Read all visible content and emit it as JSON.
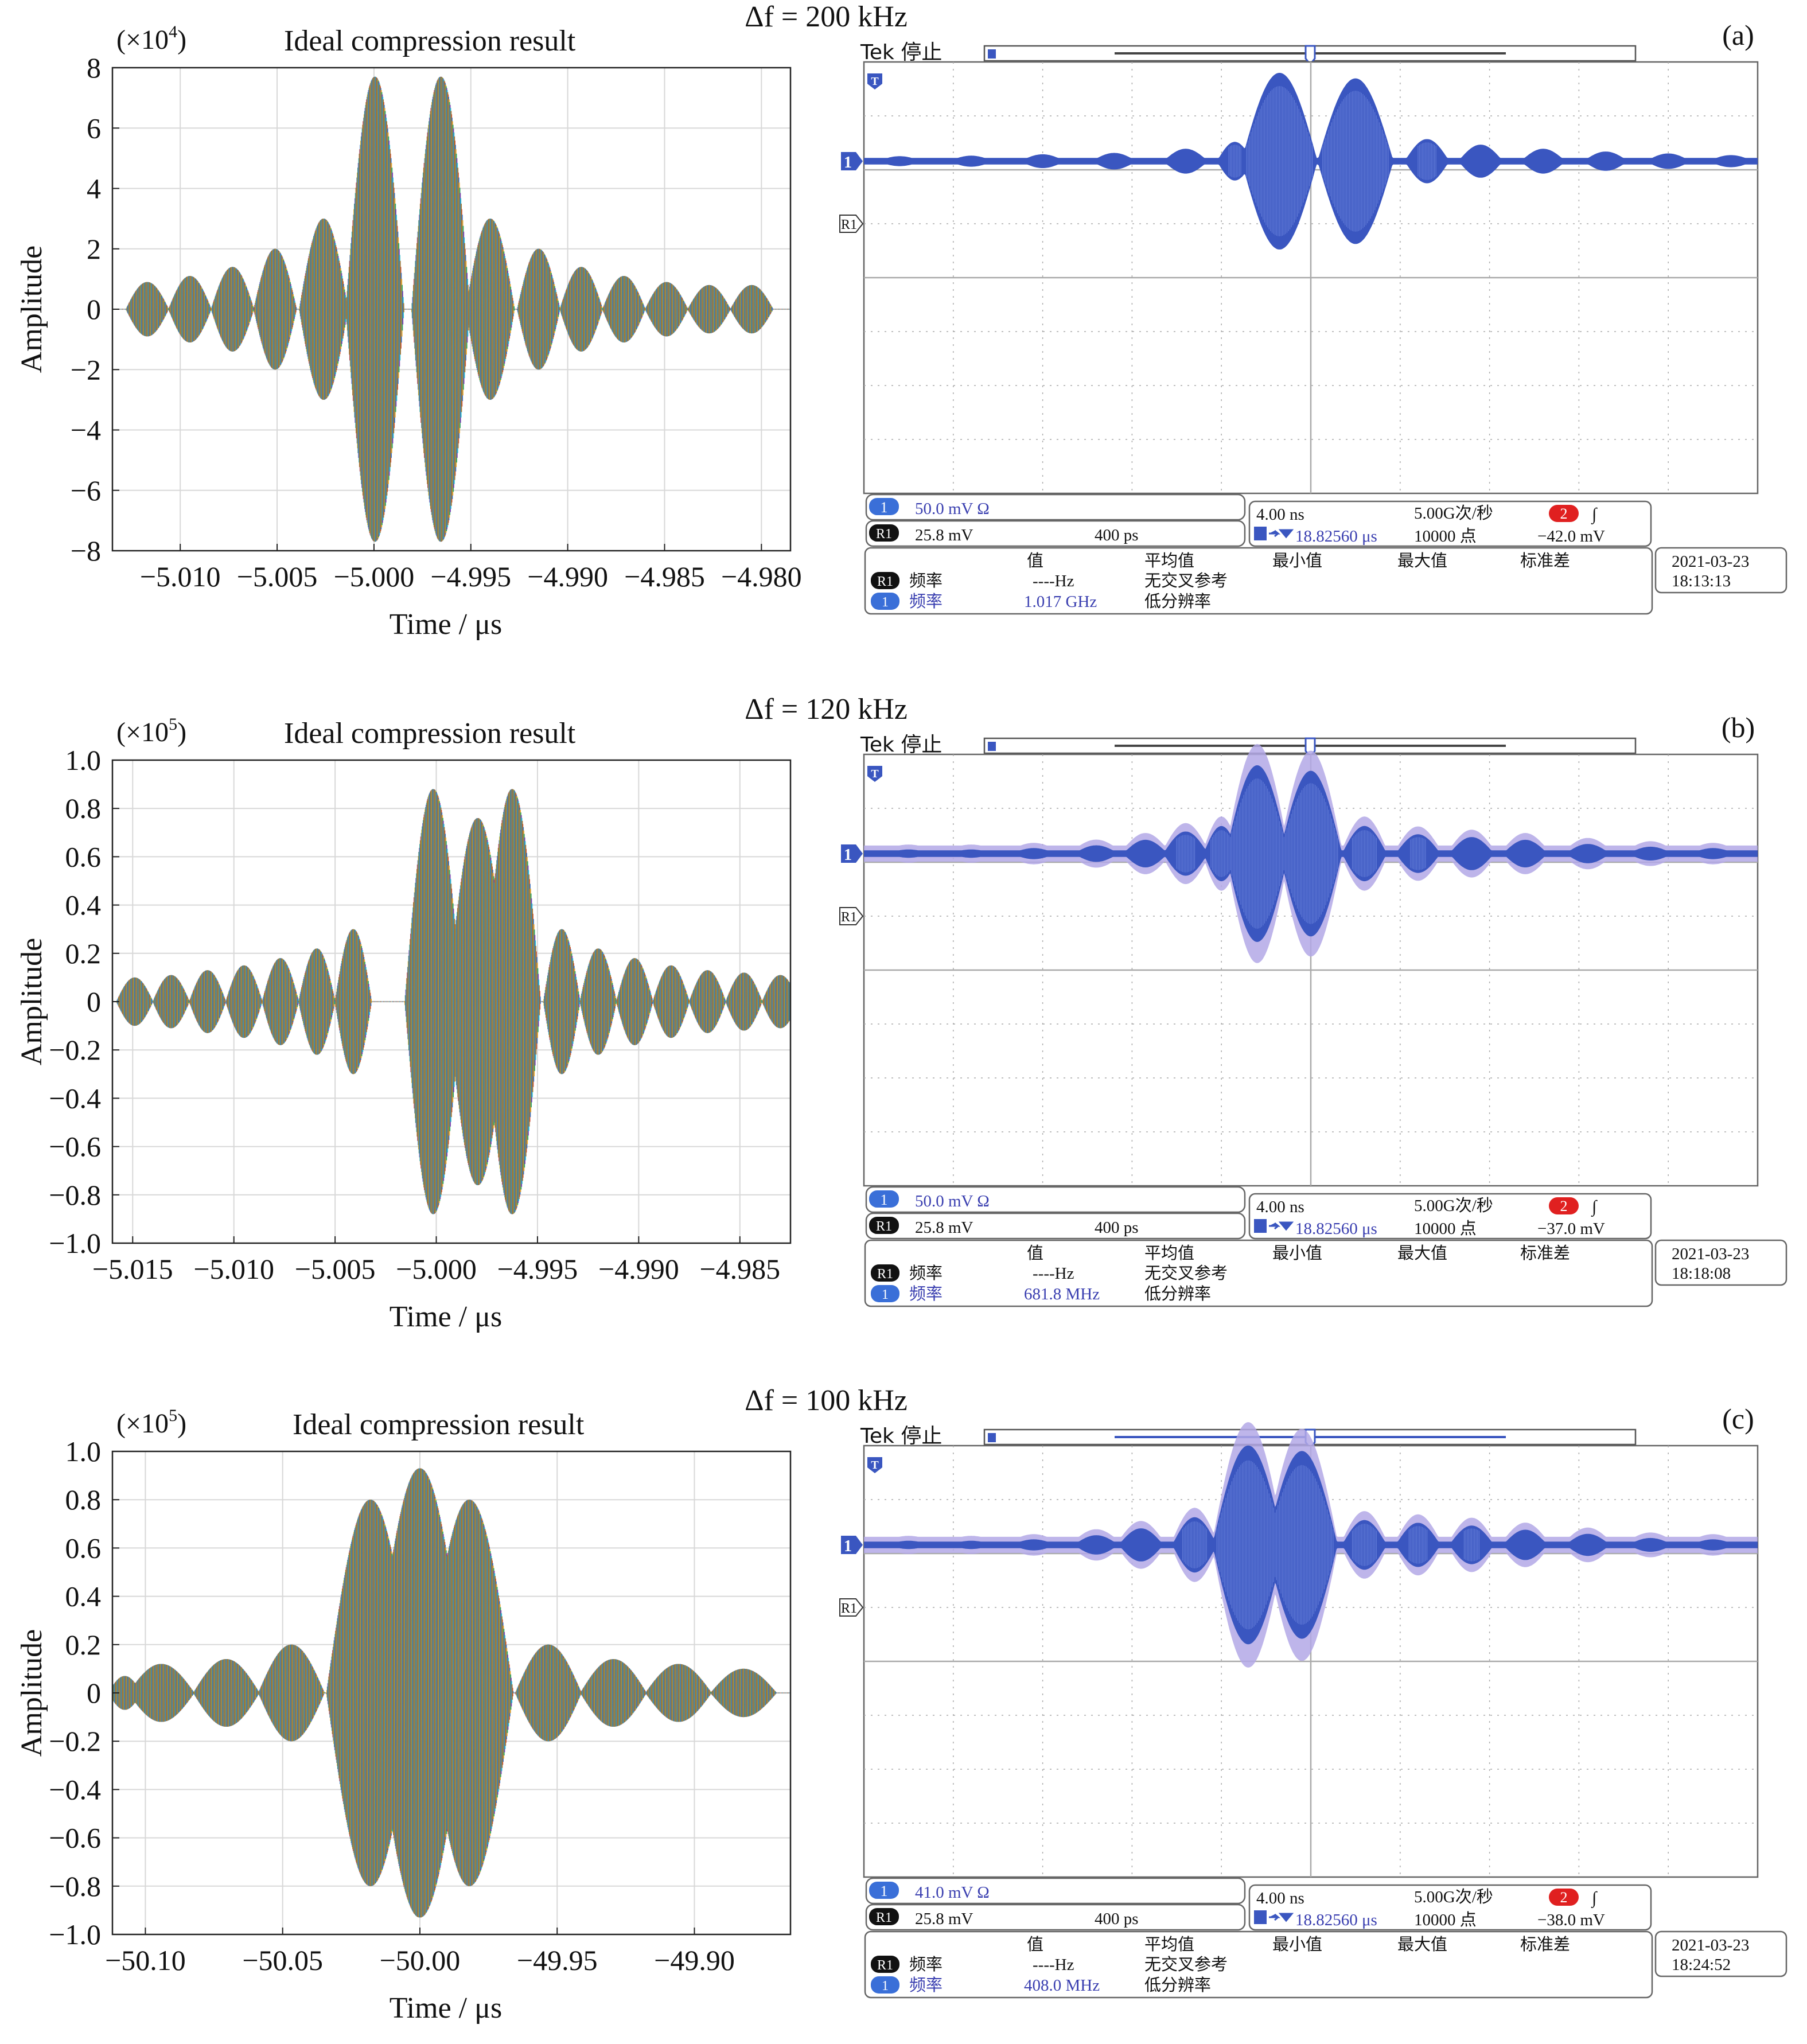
{
  "colors": {
    "scope_wave": "#3a56c0",
    "scope_halo": "#b3a8e6",
    "scope_text_blue": "#3a3fb0",
    "scope_badge_red": "#e02020",
    "scope_badge_blue": "#3a6fd8",
    "grid": "#d8d8d8",
    "sim_colors": [
      "#d8382a",
      "#2f6fc0",
      "#e7a020",
      "#2aa060",
      "#7a3fb0",
      "#1fb5c8",
      "#a07030"
    ]
  },
  "panels": [
    {
      "id": "a",
      "heading": "Δf = 200 kHz",
      "letter": "(a)",
      "chart_data": {
        "type": "line",
        "title": "Ideal compression result",
        "exponent_label": "(×10",
        "exponent_sup": "4",
        "exponent_close": ")",
        "xlabel": "Time / μs",
        "ylabel": "Amplitude",
        "xlim": [
          -5.0135,
          -4.9785
        ],
        "ylim": [
          -8,
          8
        ],
        "xticks": [
          -5.01,
          -5.005,
          -5.0,
          -4.995,
          -4.99,
          -4.985,
          -4.98
        ],
        "xtick_labels": [
          "−5.010",
          "−5.005",
          "−5.000",
          "−4.995",
          "−4.990",
          "−4.985",
          "−4.980"
        ],
        "yticks": [
          -8,
          -6,
          -4,
          -2,
          0,
          2,
          4,
          6,
          8
        ],
        "ytick_labels": [
          "−8",
          "−6",
          "−4",
          "−2",
          "0",
          "2",
          "4",
          "6",
          "8"
        ],
        "grid": true,
        "envelope": {
          "lobes": [
            {
              "center": -5.0117,
              "width": 0.0022,
              "peak": 0.9
            },
            {
              "center": -5.0095,
              "width": 0.0022,
              "peak": 1.1
            },
            {
              "center": -5.0073,
              "width": 0.0022,
              "peak": 1.4
            },
            {
              "center": -5.0051,
              "width": 0.0022,
              "peak": 2.0
            },
            {
              "center": -5.0026,
              "width": 0.0025,
              "peak": 3.0
            },
            {
              "center": -4.99995,
              "width": 0.003,
              "peak": 7.7
            },
            {
              "center": -4.99655,
              "width": 0.003,
              "peak": 7.7
            },
            {
              "center": -4.994,
              "width": 0.0025,
              "peak": 3.0
            },
            {
              "center": -4.9915,
              "width": 0.0022,
              "peak": 2.0
            },
            {
              "center": -4.9893,
              "width": 0.0022,
              "peak": 1.4
            },
            {
              "center": -4.9871,
              "width": 0.0022,
              "peak": 1.1
            },
            {
              "center": -4.9849,
              "width": 0.0022,
              "peak": 0.9
            },
            {
              "center": -4.9827,
              "width": 0.0022,
              "peak": 0.8
            },
            {
              "center": -4.9805,
              "width": 0.0022,
              "peak": 0.8
            }
          ]
        }
      },
      "scope": {
        "header": "Tek 停止",
        "ch1_marker": "1",
        "r1_marker": "R1",
        "t_marker": "T",
        "envelope": {
          "baseline": 0.23,
          "lobes": [
            {
              "center": 0.04,
              "width": 0.05,
              "peak": 0.18
            },
            {
              "center": 0.12,
              "width": 0.05,
              "peak": 0.2
            },
            {
              "center": 0.2,
              "width": 0.05,
              "peak": 0.25
            },
            {
              "center": 0.28,
              "width": 0.05,
              "peak": 0.3
            },
            {
              "center": 0.36,
              "width": 0.05,
              "peak": 0.45
            },
            {
              "center": 0.415,
              "width": 0.04,
              "peak": 0.7
            },
            {
              "center": 0.465,
              "width": 0.085,
              "peak": 3.2
            },
            {
              "center": 0.55,
              "width": 0.085,
              "peak": 3.0
            },
            {
              "center": 0.63,
              "width": 0.05,
              "peak": 0.8
            },
            {
              "center": 0.69,
              "width": 0.05,
              "peak": 0.6
            },
            {
              "center": 0.76,
              "width": 0.05,
              "peak": 0.45
            },
            {
              "center": 0.83,
              "width": 0.05,
              "peak": 0.35
            },
            {
              "center": 0.9,
              "width": 0.05,
              "peak": 0.28
            },
            {
              "center": 0.97,
              "width": 0.05,
              "peak": 0.22
            }
          ],
          "halo": 0.0
        },
        "info": {
          "ch1_scale": "50.0 mV Ω",
          "r1_scale": "25.8 mV",
          "r1_time": "400 ps",
          "timebase": "4.00 ns",
          "sample_rate": "5.00G次/秒",
          "ch2_badge": "2",
          "trig_slope": "∫",
          "trig_position": "18.82560 μs",
          "points": "10000 点",
          "trig_level": "−42.0 mV",
          "meas_header": [
            "值",
            "平均值",
            "最小值",
            "最大值",
            "标准差"
          ],
          "meas_sub": "无交叉参考",
          "meas_sub2": "低分辨率",
          "r1_meas_label": "频率",
          "r1_meas_value": "----Hz",
          "ch1_meas_label": "频率",
          "ch1_meas_value": "1.017 GHz",
          "date": "2021-03-23",
          "time": "18:13:13"
        }
      }
    },
    {
      "id": "b",
      "heading": "Δf = 120 kHz",
      "letter": "(b)",
      "chart_data": {
        "type": "line",
        "title": "Ideal compression result",
        "exponent_label": "(×10",
        "exponent_sup": "5",
        "exponent_close": ")",
        "xlabel": "Time / μs",
        "ylabel": "Amplitude",
        "xlim": [
          -5.016,
          -4.9825
        ],
        "ylim": [
          -1.0,
          1.0
        ],
        "xticks": [
          -5.015,
          -5.01,
          -5.005,
          -5.0,
          -4.995,
          -4.99,
          -4.985
        ],
        "xtick_labels": [
          "−5.015",
          "−5.010",
          "−5.005",
          "−5.000",
          "−4.995",
          "−4.990",
          "−4.985"
        ],
        "yticks": [
          -1.0,
          -0.8,
          -0.6,
          -0.4,
          -0.2,
          0,
          0.2,
          0.4,
          0.6,
          0.8,
          1.0
        ],
        "ytick_labels": [
          "−1.0",
          "−0.8",
          "−0.6",
          "−0.4",
          "−0.2",
          "0",
          "0.2",
          "0.4",
          "0.6",
          "0.8",
          "1.0"
        ],
        "grid": true,
        "envelope": {
          "lobes": [
            {
              "center": -5.0149,
              "width": 0.0018,
              "peak": 0.1
            },
            {
              "center": -5.0131,
              "width": 0.0018,
              "peak": 0.11
            },
            {
              "center": -5.0113,
              "width": 0.0018,
              "peak": 0.13
            },
            {
              "center": -5.0095,
              "width": 0.0018,
              "peak": 0.15
            },
            {
              "center": -5.0077,
              "width": 0.0018,
              "peak": 0.18
            },
            {
              "center": -5.0059,
              "width": 0.0018,
              "peak": 0.22
            },
            {
              "center": -5.0041,
              "width": 0.0018,
              "peak": 0.3
            },
            {
              "center": -5.00015,
              "width": 0.0028,
              "peak": 0.88
            },
            {
              "center": -4.99795,
              "width": 0.003,
              "peak": 0.76
            },
            {
              "center": -4.99625,
              "width": 0.0028,
              "peak": 0.88
            },
            {
              "center": -4.9938,
              "width": 0.0018,
              "peak": 0.3
            },
            {
              "center": -4.992,
              "width": 0.0018,
              "peak": 0.22
            },
            {
              "center": -4.9902,
              "width": 0.0018,
              "peak": 0.18
            },
            {
              "center": -4.9884,
              "width": 0.0018,
              "peak": 0.15
            },
            {
              "center": -4.9866,
              "width": 0.0018,
              "peak": 0.13
            },
            {
              "center": -4.9848,
              "width": 0.0018,
              "peak": 0.12
            },
            {
              "center": -4.983,
              "width": 0.0018,
              "peak": 0.11
            }
          ]
        }
      },
      "scope": {
        "header": "Tek 停止",
        "ch1_marker": "1",
        "r1_marker": "R1",
        "t_marker": "T",
        "envelope": {
          "baseline": 0.23,
          "lobes": [
            {
              "center": 0.05,
              "width": 0.05,
              "peak": 0.15
            },
            {
              "center": 0.12,
              "width": 0.05,
              "peak": 0.15
            },
            {
              "center": 0.19,
              "width": 0.05,
              "peak": 0.2
            },
            {
              "center": 0.26,
              "width": 0.05,
              "peak": 0.3
            },
            {
              "center": 0.315,
              "width": 0.05,
              "peak": 0.5
            },
            {
              "center": 0.36,
              "width": 0.05,
              "peak": 0.8
            },
            {
              "center": 0.4,
              "width": 0.04,
              "peak": 1.0
            },
            {
              "center": 0.44,
              "width": 0.07,
              "peak": 3.2
            },
            {
              "center": 0.5,
              "width": 0.07,
              "peak": 3.0
            },
            {
              "center": 0.56,
              "width": 0.05,
              "peak": 1.0
            },
            {
              "center": 0.62,
              "width": 0.05,
              "peak": 0.7
            },
            {
              "center": 0.68,
              "width": 0.05,
              "peak": 0.6
            },
            {
              "center": 0.74,
              "width": 0.05,
              "peak": 0.5
            },
            {
              "center": 0.81,
              "width": 0.05,
              "peak": 0.35
            },
            {
              "center": 0.88,
              "width": 0.05,
              "peak": 0.25
            },
            {
              "center": 0.95,
              "width": 0.05,
              "peak": 0.2
            }
          ],
          "halo": 0.55
        },
        "info": {
          "ch1_scale": "50.0 mV Ω",
          "r1_scale": "25.8 mV",
          "r1_time": "400 ps",
          "timebase": "4.00 ns",
          "sample_rate": "5.00G次/秒",
          "ch2_badge": "2",
          "trig_slope": "∫",
          "trig_position": "18.82560 μs",
          "points": "10000 点",
          "trig_level": "−37.0 mV",
          "meas_header": [
            "值",
            "平均值",
            "最小值",
            "最大值",
            "标准差"
          ],
          "meas_sub": "无交叉参考",
          "meas_sub2": "低分辨率",
          "r1_meas_label": "频率",
          "r1_meas_value": "----Hz",
          "ch1_meas_label": "频率",
          "ch1_meas_value": "681.8 MHz",
          "date": "2021-03-23",
          "time": "18:18:08"
        }
      }
    },
    {
      "id": "c",
      "heading": "Δf = 100 kHz",
      "letter": "(c)",
      "chart_data": {
        "type": "line",
        "title": "Ideal compression result",
        "exponent_label": "(×10",
        "exponent_sup": "5",
        "exponent_close": ")",
        "xlabel": "Time / μs",
        "ylabel": "Amplitude",
        "xlim": [
          -50.112,
          -49.865
        ],
        "ylim": [
          -1.0,
          1.0
        ],
        "xticks": [
          -50.1,
          -50.05,
          -50.0,
          -49.95,
          -49.9
        ],
        "xtick_labels": [
          "−50.10",
          "−50.05",
          "−50.00",
          "−49.95",
          "−49.90"
        ],
        "yticks": [
          -1.0,
          -0.8,
          -0.6,
          -0.4,
          -0.2,
          0,
          0.2,
          0.4,
          0.6,
          0.8,
          1.0
        ],
        "ytick_labels": [
          "−1.0",
          "−0.8",
          "−0.6",
          "−0.4",
          "−0.2",
          "0",
          "0.2",
          "0.4",
          "0.6",
          "0.8",
          "1.0"
        ],
        "grid": true,
        "envelope": {
          "lobes": [
            {
              "center": -50.1075,
              "width": 0.012,
              "peak": 0.07
            },
            {
              "center": -50.0942,
              "width": 0.024,
              "peak": 0.12
            },
            {
              "center": -50.0705,
              "width": 0.024,
              "peak": 0.14
            },
            {
              "center": -50.0468,
              "width": 0.024,
              "peak": 0.2
            },
            {
              "center": -50.018,
              "width": 0.032,
              "peak": 0.8
            },
            {
              "center": -50.0,
              "width": 0.034,
              "peak": 0.93
            },
            {
              "center": -49.982,
              "width": 0.032,
              "peak": 0.8
            },
            {
              "center": -49.9532,
              "width": 0.024,
              "peak": 0.2
            },
            {
              "center": -49.9295,
              "width": 0.024,
              "peak": 0.14
            },
            {
              "center": -49.9058,
              "width": 0.024,
              "peak": 0.12
            },
            {
              "center": -49.8821,
              "width": 0.024,
              "peak": 0.1
            }
          ]
        }
      },
      "scope": {
        "header": "Tek 停止",
        "ch1_marker": "1",
        "r1_marker": "R1",
        "t_marker": "T",
        "envelope": {
          "baseline": 0.23,
          "lobes": [
            {
              "center": 0.05,
              "width": 0.05,
              "peak": 0.15
            },
            {
              "center": 0.12,
              "width": 0.05,
              "peak": 0.15
            },
            {
              "center": 0.19,
              "width": 0.05,
              "peak": 0.2
            },
            {
              "center": 0.26,
              "width": 0.05,
              "peak": 0.35
            },
            {
              "center": 0.31,
              "width": 0.05,
              "peak": 0.6
            },
            {
              "center": 0.37,
              "width": 0.05,
              "peak": 1.0
            },
            {
              "center": 0.43,
              "width": 0.08,
              "peak": 3.6
            },
            {
              "center": 0.49,
              "width": 0.08,
              "peak": 3.4
            },
            {
              "center": 0.56,
              "width": 0.05,
              "peak": 0.9
            },
            {
              "center": 0.62,
              "width": 0.05,
              "peak": 0.8
            },
            {
              "center": 0.68,
              "width": 0.05,
              "peak": 0.7
            },
            {
              "center": 0.74,
              "width": 0.05,
              "peak": 0.55
            },
            {
              "center": 0.81,
              "width": 0.05,
              "peak": 0.4
            },
            {
              "center": 0.88,
              "width": 0.05,
              "peak": 0.25
            },
            {
              "center": 0.95,
              "width": 0.05,
              "peak": 0.2
            }
          ],
          "halo": 0.55
        },
        "info": {
          "ch1_scale": "41.0 mV Ω",
          "r1_scale": "25.8 mV",
          "r1_time": "400 ps",
          "timebase": "4.00 ns",
          "sample_rate": "5.00G次/秒",
          "ch2_badge": "2",
          "trig_slope": "∫",
          "trig_position": "18.82560 μs",
          "points": "10000 点",
          "trig_level": "−38.0 mV",
          "meas_header": [
            "值",
            "平均值",
            "最小值",
            "最大值",
            "标准差"
          ],
          "meas_sub": "无交叉参考",
          "meas_sub2": "低分辨率",
          "r1_meas_label": "频率",
          "r1_meas_value": "----Hz",
          "ch1_meas_label": "频率",
          "ch1_meas_value": "408.0 MHz",
          "date": "2021-03-23",
          "time": "18:24:52"
        }
      }
    }
  ]
}
